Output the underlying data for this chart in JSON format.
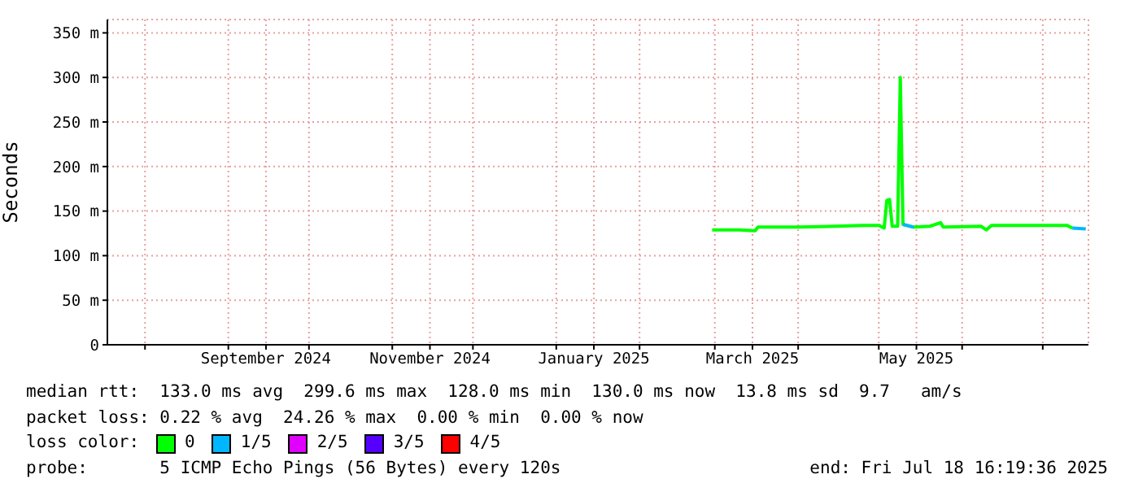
{
  "chart_data": {
    "type": "line",
    "ylabel": "Seconds",
    "legend_title": "loss color:",
    "legend": "bottom",
    "grid": true,
    "marker": "none",
    "line_style": "solid",
    "xlim": [
      "2024-07-18",
      "2025-07-18"
    ],
    "xticks": [
      {
        "value": "2024-08-01",
        "label": null
      },
      {
        "value": "2024-09-01",
        "label": null
      },
      {
        "value": "2024-09-15",
        "label": "September 2024"
      },
      {
        "value": "2024-10-01",
        "label": null
      },
      {
        "value": "2024-11-01",
        "label": null
      },
      {
        "value": "2024-11-15",
        "label": "November 2024"
      },
      {
        "value": "2024-12-01",
        "label": null
      },
      {
        "value": "2025-01-01",
        "label": null
      },
      {
        "value": "2025-01-15",
        "label": "January 2025"
      },
      {
        "value": "2025-02-01",
        "label": null
      },
      {
        "value": "2025-03-01",
        "label": null
      },
      {
        "value": "2025-03-15",
        "label": "March 2025"
      },
      {
        "value": "2025-04-01",
        "label": null
      },
      {
        "value": "2025-05-01",
        "label": null
      },
      {
        "value": "2025-05-15",
        "label": "May 2025"
      },
      {
        "value": "2025-06-01",
        "label": null
      },
      {
        "value": "2025-07-01",
        "label": null
      }
    ],
    "ylim": [
      0,
      365
    ],
    "yticks": [
      0,
      {
        "value": 50,
        "label": "50 m"
      },
      {
        "value": 100,
        "label": "100 m"
      },
      {
        "value": 150,
        "label": "150 m"
      },
      {
        "value": 200,
        "label": "200 m"
      },
      {
        "value": 250,
        "label": "250 m"
      },
      {
        "value": 300,
        "label": "300 m"
      },
      {
        "value": 350,
        "label": "350 m"
      }
    ],
    "x": [
      "2025-02-28",
      "2025-03-10",
      "2025-03-16",
      "2025-03-17",
      "2025-04-01",
      "2025-04-15",
      "2025-04-25",
      "2025-05-01",
      "2025-05-03",
      "2025-05-04",
      "2025-05-05",
      "2025-05-06",
      "2025-05-08",
      "2025-05-09",
      "2025-05-10",
      "2025-05-14",
      "2025-05-20",
      "2025-05-24",
      "2025-05-25",
      "2025-06-08",
      "2025-06-10",
      "2025-06-12",
      "2025-07-10",
      "2025-07-12",
      "2025-07-17"
    ],
    "series": [
      {
        "name": "0",
        "color": "#00ff00",
        "values": [
          129,
          129,
          128,
          132,
          132,
          133,
          134,
          134,
          131,
          162,
          163,
          133,
          133,
          300,
          135,
          132,
          133,
          137,
          132,
          133,
          129,
          134,
          134,
          131,
          null
        ]
      },
      {
        "name": "1/5",
        "color": "#00b7ff",
        "values": [
          null,
          null,
          null,
          null,
          null,
          null,
          null,
          null,
          null,
          null,
          null,
          null,
          null,
          null,
          135,
          132,
          null,
          null,
          null,
          null,
          null,
          null,
          null,
          131,
          130
        ]
      },
      {
        "name": "2/5",
        "color": "#e000ff",
        "values": [
          null,
          null,
          null,
          null,
          null,
          null,
          null,
          null,
          null,
          null,
          null,
          null,
          null,
          null,
          null,
          null,
          null,
          null,
          null,
          null,
          null,
          null,
          null,
          null,
          null
        ]
      },
      {
        "name": "3/5",
        "color": "#5500ff",
        "values": [
          null,
          null,
          null,
          null,
          null,
          null,
          null,
          null,
          null,
          null,
          null,
          null,
          null,
          null,
          null,
          null,
          null,
          null,
          null,
          null,
          null,
          null,
          null,
          null,
          null
        ]
      },
      {
        "name": "4/5",
        "color": "#ff0000",
        "values": [
          null,
          null,
          null,
          null,
          null,
          null,
          null,
          null,
          null,
          null,
          null,
          null,
          null,
          null,
          null,
          null,
          null,
          null,
          null,
          null,
          null,
          null,
          null,
          null,
          null
        ]
      }
    ],
    "annotations": [
      "median rtt:  133.0 ms avg  299.6 ms max  128.0 ms min  130.0 ms now  13.8 ms sd  9.7   am/s",
      "packet loss: 0.22 % avg  24.26 % max  0.00 % min  0.00 % now",
      "probe:       5 ICMP Echo Pings (56 Bytes) every 120s",
      "end: Fri Jul 18 16:19:36 2025"
    ]
  }
}
